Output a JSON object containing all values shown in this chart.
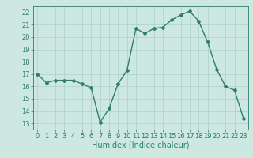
{
  "x": [
    0,
    1,
    2,
    3,
    4,
    5,
    6,
    7,
    8,
    9,
    10,
    11,
    12,
    13,
    14,
    15,
    16,
    17,
    18,
    19,
    20,
    21,
    22,
    23
  ],
  "y": [
    17.0,
    16.3,
    16.5,
    16.5,
    16.5,
    16.2,
    15.9,
    13.1,
    14.2,
    16.2,
    17.3,
    20.7,
    20.3,
    20.7,
    20.8,
    21.4,
    21.8,
    22.1,
    21.3,
    19.6,
    17.4,
    16.0,
    15.7,
    13.4
  ],
  "line_color": "#2e7d6e",
  "marker": "D",
  "marker_size": 2,
  "line_width": 1.0,
  "bg_color": "#cce8e0",
  "grid_color": "#aad0c8",
  "xlabel": "Humidex (Indice chaleur)",
  "xlabel_fontsize": 7,
  "tick_fontsize": 6,
  "ylim": [
    12.5,
    22.5
  ],
  "yticks": [
    13,
    14,
    15,
    16,
    17,
    18,
    19,
    20,
    21,
    22
  ],
  "xlim": [
    -0.5,
    23.5
  ],
  "xticks": [
    0,
    1,
    2,
    3,
    4,
    5,
    6,
    7,
    8,
    9,
    10,
    11,
    12,
    13,
    14,
    15,
    16,
    17,
    18,
    19,
    20,
    21,
    22,
    23
  ],
  "axis_color": "#2e7d6e",
  "spine_color": "#2e7d6e"
}
